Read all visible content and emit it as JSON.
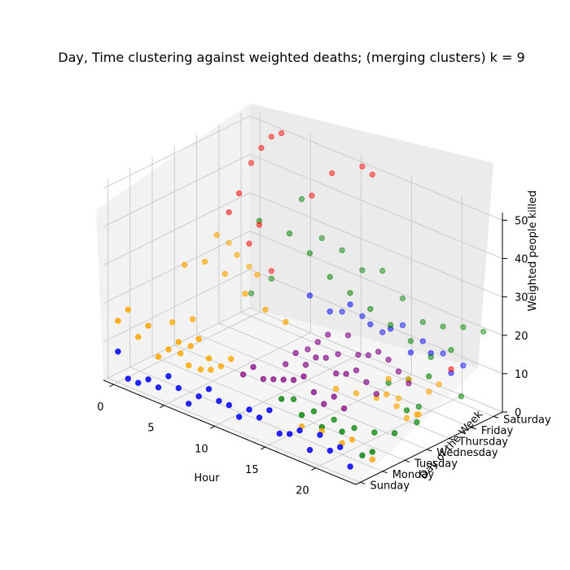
{
  "chart_data": {
    "type": "scatter",
    "title": "Day, Time clustering against weighted deaths; (merging clusters) k = 9",
    "xlabel": "Hour",
    "ylabel": "Day of the Week",
    "zlabel": "Weighted people killed",
    "x_ticks": [
      0,
      5,
      10,
      15,
      20
    ],
    "y_ticks": [
      "Sunday",
      "Monday",
      "Tuesday",
      "Wednesday",
      "Thursday",
      "Friday",
      "Saturday"
    ],
    "z_ticks": [
      0,
      10,
      20,
      30,
      40,
      50
    ],
    "xlim": [
      -1,
      24
    ],
    "ylim": [
      -0.2,
      6.4
    ],
    "zlim": [
      0,
      52
    ],
    "series": [
      {
        "color": "#0000ff",
        "points": [
          [
            0,
            0,
            8
          ],
          [
            1,
            0,
            2
          ],
          [
            2,
            0,
            2
          ],
          [
            3,
            0,
            4
          ],
          [
            4,
            0,
            3
          ],
          [
            5,
            0,
            7
          ],
          [
            6,
            0,
            5
          ],
          [
            7,
            0,
            2
          ],
          [
            8,
            0,
            5
          ],
          [
            9,
            0,
            8
          ],
          [
            10,
            0,
            6
          ],
          [
            11,
            0,
            6
          ],
          [
            12,
            0,
            4
          ],
          [
            13,
            0,
            7
          ],
          [
            14,
            0,
            6
          ],
          [
            15,
            0,
            9
          ],
          [
            16,
            0,
            4
          ],
          [
            17,
            0,
            5
          ],
          [
            18,
            0,
            7
          ],
          [
            19,
            0,
            3
          ],
          [
            20,
            0,
            8
          ],
          [
            21,
            0,
            5
          ],
          [
            22,
            0,
            7
          ],
          [
            23,
            0,
            3
          ],
          [
            8,
            5,
            17
          ],
          [
            10,
            5,
            15
          ],
          [
            12,
            5,
            19
          ],
          [
            14,
            5,
            16
          ],
          [
            16,
            5,
            17
          ],
          [
            18,
            5,
            13
          ],
          [
            20,
            5,
            15
          ],
          [
            22,
            5,
            12
          ],
          [
            9,
            6,
            11
          ],
          [
            11,
            6,
            12
          ],
          [
            13,
            6,
            10
          ],
          [
            15,
            6,
            14
          ],
          [
            17,
            6,
            12
          ],
          [
            19,
            6,
            11
          ],
          [
            21,
            6,
            10
          ]
        ]
      },
      {
        "color": "#008000",
        "points": [
          [
            14,
            1,
            8
          ],
          [
            16,
            1,
            6
          ],
          [
            18,
            1,
            5
          ],
          [
            20,
            1,
            6
          ],
          [
            22,
            1,
            2
          ],
          [
            23,
            1,
            4
          ],
          [
            13,
            2,
            4
          ],
          [
            15,
            2,
            3
          ],
          [
            17,
            2,
            3
          ],
          [
            19,
            2,
            3
          ],
          [
            21,
            2,
            4
          ],
          [
            23,
            2,
            6
          ],
          [
            0,
            6,
            6
          ],
          [
            2,
            6,
            12
          ],
          [
            5,
            6,
            36
          ],
          [
            7,
            6,
            28
          ],
          [
            9,
            6,
            27
          ],
          [
            11,
            6,
            24
          ],
          [
            13,
            6,
            26
          ],
          [
            15,
            6,
            21
          ],
          [
            3,
            5,
            31
          ],
          [
            6,
            5,
            31
          ],
          [
            8,
            5,
            28
          ],
          [
            10,
            5,
            24
          ],
          [
            12,
            5,
            22
          ],
          [
            14,
            5,
            20
          ],
          [
            16,
            5,
            18
          ],
          [
            18,
            5,
            16
          ],
          [
            20,
            5,
            14
          ],
          [
            22,
            5,
            18
          ],
          [
            23,
            6,
            21
          ],
          [
            21,
            6,
            20
          ],
          [
            19,
            6,
            18
          ],
          [
            17,
            6,
            17
          ],
          [
            22,
            4,
            14
          ],
          [
            20,
            4,
            11
          ],
          [
            18,
            4,
            8
          ],
          [
            23,
            3,
            6
          ],
          [
            22,
            3,
            8
          ],
          [
            21,
            4,
            5
          ],
          [
            23,
            5,
            7
          ]
        ]
      },
      {
        "color": "#ffa500",
        "points": [
          [
            0,
            0,
            16
          ],
          [
            1,
            0,
            20
          ],
          [
            2,
            0,
            14
          ],
          [
            3,
            0,
            18
          ],
          [
            4,
            0,
            11
          ],
          [
            5,
            0,
            14
          ],
          [
            6,
            0,
            17
          ],
          [
            7,
            0,
            12
          ],
          [
            8,
            0,
            20
          ],
          [
            9,
            0,
            16
          ],
          [
            1,
            2,
            11
          ],
          [
            3,
            2,
            14
          ],
          [
            4,
            1,
            9
          ],
          [
            5,
            1,
            12
          ],
          [
            6,
            1,
            7
          ],
          [
            7,
            1,
            8
          ],
          [
            8,
            1,
            10
          ],
          [
            9,
            1,
            13
          ],
          [
            16,
            1,
            3
          ],
          [
            18,
            1,
            4
          ],
          [
            20,
            1,
            3
          ],
          [
            21,
            1,
            5
          ],
          [
            23,
            1,
            2
          ],
          [
            17,
            3,
            7
          ],
          [
            19,
            3,
            8
          ],
          [
            20,
            3,
            10
          ],
          [
            21,
            3,
            8
          ],
          [
            22,
            3,
            6
          ],
          [
            23,
            3,
            8
          ],
          [
            15,
            3,
            6
          ],
          [
            18,
            4,
            9
          ],
          [
            20,
            4,
            11
          ],
          [
            22,
            4,
            10
          ],
          [
            23,
            4,
            13
          ],
          [
            19,
            4,
            5
          ],
          [
            21,
            4,
            3
          ],
          [
            0,
            3,
            22
          ],
          [
            2,
            3,
            25
          ],
          [
            4,
            3,
            24
          ],
          [
            6,
            3,
            21
          ],
          [
            8,
            3,
            19
          ],
          [
            10,
            3,
            18
          ],
          [
            1,
            4,
            28
          ],
          [
            3,
            4,
            25
          ],
          [
            5,
            4,
            22
          ],
          [
            0,
            5,
            22
          ],
          [
            2,
            5,
            18
          ]
        ]
      },
      {
        "color": "#ff0000",
        "points": [
          [
            0,
            6,
            40
          ],
          [
            1,
            6,
            45
          ],
          [
            2,
            6,
            49
          ],
          [
            3,
            6,
            51
          ],
          [
            0,
            5,
            30
          ],
          [
            1,
            5,
            36
          ],
          [
            2,
            5,
            24
          ],
          [
            3,
            5,
            30
          ],
          [
            6,
            6,
            38
          ],
          [
            8,
            6,
            46
          ],
          [
            11,
            6,
            51
          ],
          [
            12,
            6,
            50
          ],
          [
            22,
            5,
            13
          ],
          [
            2,
            6,
            14
          ]
        ]
      },
      {
        "color": "#800080",
        "points": [
          [
            8,
            2,
            5
          ],
          [
            9,
            2,
            8
          ],
          [
            10,
            2,
            6
          ],
          [
            11,
            2,
            7
          ],
          [
            12,
            2,
            8
          ],
          [
            13,
            2,
            9
          ],
          [
            14,
            2,
            11
          ],
          [
            15,
            2,
            8
          ],
          [
            16,
            2,
            6
          ],
          [
            17,
            2,
            9
          ],
          [
            18,
            2,
            7
          ],
          [
            10,
            3,
            7
          ],
          [
            11,
            3,
            11
          ],
          [
            12,
            3,
            9
          ],
          [
            13,
            3,
            12
          ],
          [
            14,
            3,
            13
          ],
          [
            15,
            3,
            10
          ],
          [
            16,
            3,
            11
          ],
          [
            17,
            3,
            13
          ],
          [
            18,
            3,
            11
          ],
          [
            19,
            3,
            9
          ],
          [
            10,
            4,
            8
          ],
          [
            11,
            4,
            11
          ],
          [
            12,
            4,
            14
          ],
          [
            13,
            4,
            10
          ],
          [
            14,
            4,
            16
          ],
          [
            15,
            4,
            12
          ],
          [
            16,
            4,
            13
          ],
          [
            17,
            4,
            15
          ],
          [
            18,
            4,
            14
          ],
          [
            19,
            4,
            12
          ],
          [
            20,
            4,
            10
          ]
        ]
      }
    ]
  }
}
